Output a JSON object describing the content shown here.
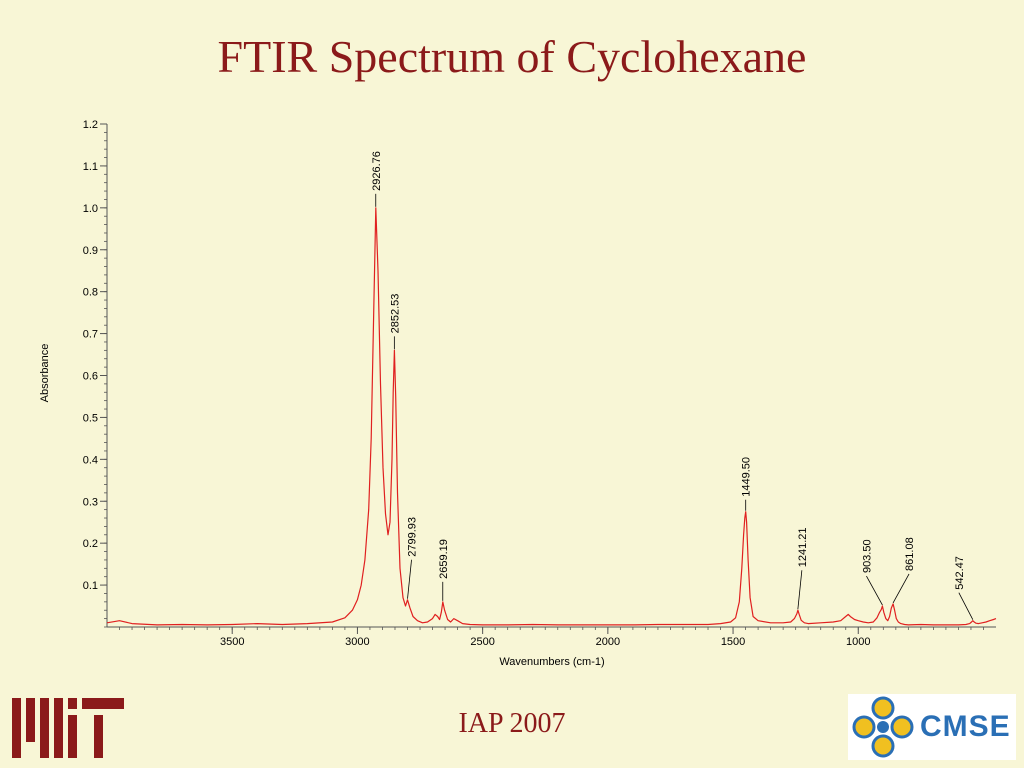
{
  "slide": {
    "title": "FTIR Spectrum of Cyclohexane",
    "footer": "IAP 2007",
    "logo_right_text": "CMSE",
    "logo_left": "MIT logo",
    "title_color": "#8b1a1a",
    "background_color": "#f8f6d6"
  },
  "chart_data": {
    "type": "line",
    "xlabel": "Wavenumbers (cm-1)",
    "ylabel": "Absorbance",
    "xlim": [
      4000,
      450
    ],
    "ylim": [
      0,
      1.2
    ],
    "x_reversed": true,
    "x_ticks": [
      3500,
      3000,
      2500,
      2000,
      1500,
      1000
    ],
    "y_ticks": [
      0.1,
      0.2,
      0.3,
      0.4,
      0.5,
      0.6,
      0.7,
      0.8,
      0.9,
      1.0,
      1.1,
      1.2
    ],
    "grid": false,
    "line_color": "#e02020",
    "peaks": [
      {
        "label": "2926.76",
        "x": 2926.76,
        "y": 1.0
      },
      {
        "label": "2852.53",
        "x": 2852.53,
        "y": 0.66
      },
      {
        "label": "2799.93",
        "x": 2799.93,
        "y": 0.065
      },
      {
        "label": "2659.19",
        "x": 2659.19,
        "y": 0.06
      },
      {
        "label": "1449.50",
        "x": 1449.5,
        "y": 0.275
      },
      {
        "label": "1241.21",
        "x": 1241.21,
        "y": 0.04
      },
      {
        "label": "903.50",
        "x": 903.5,
        "y": 0.05
      },
      {
        "label": "861.08",
        "x": 861.08,
        "y": 0.055
      },
      {
        "label": "542.47",
        "x": 542.47,
        "y": 0.015
      }
    ],
    "series": [
      {
        "x": [
          4000,
          3950,
          3900,
          3800,
          3700,
          3600,
          3500,
          3400,
          3300,
          3200,
          3100,
          3050,
          3020,
          3000,
          2985,
          2970,
          2955,
          2945,
          2935,
          2926.76,
          2918,
          2908,
          2898,
          2888,
          2878,
          2870,
          2862,
          2857,
          2852.53,
          2847,
          2840,
          2830,
          2818,
          2808,
          2799.93,
          2790,
          2778,
          2760,
          2740,
          2720,
          2700,
          2690,
          2680,
          2672,
          2665,
          2659.19,
          2652,
          2640,
          2628,
          2615,
          2600,
          2580,
          2550,
          2500,
          2400,
          2300,
          2200,
          2100,
          2000,
          1900,
          1800,
          1700,
          1600,
          1550,
          1510,
          1490,
          1475,
          1465,
          1458,
          1453,
          1449.5,
          1446,
          1440,
          1432,
          1420,
          1400,
          1350,
          1300,
          1270,
          1255,
          1245,
          1241.21,
          1236,
          1228,
          1215,
          1200,
          1150,
          1100,
          1070,
          1050,
          1040,
          1030,
          1015,
          1000,
          980,
          960,
          940,
          925,
          915,
          908,
          903.5,
          898,
          890,
          882,
          875,
          868,
          861.08,
          855,
          848,
          840,
          830,
          815,
          800,
          750,
          700,
          650,
          600,
          570,
          555,
          548,
          542.47,
          537,
          530,
          520,
          505,
          490,
          475,
          460,
          450
        ],
        "y": [
          0.01,
          0.015,
          0.008,
          0.005,
          0.006,
          0.005,
          0.006,
          0.008,
          0.006,
          0.008,
          0.012,
          0.022,
          0.04,
          0.065,
          0.1,
          0.16,
          0.28,
          0.45,
          0.75,
          1.0,
          0.85,
          0.58,
          0.38,
          0.27,
          0.22,
          0.25,
          0.4,
          0.56,
          0.66,
          0.55,
          0.32,
          0.14,
          0.07,
          0.05,
          0.065,
          0.045,
          0.025,
          0.015,
          0.01,
          0.012,
          0.02,
          0.03,
          0.025,
          0.018,
          0.035,
          0.06,
          0.04,
          0.018,
          0.012,
          0.02,
          0.015,
          0.008,
          0.006,
          0.005,
          0.005,
          0.006,
          0.005,
          0.005,
          0.005,
          0.005,
          0.006,
          0.006,
          0.006,
          0.008,
          0.012,
          0.022,
          0.06,
          0.14,
          0.22,
          0.26,
          0.275,
          0.25,
          0.16,
          0.07,
          0.025,
          0.015,
          0.01,
          0.01,
          0.012,
          0.02,
          0.032,
          0.04,
          0.03,
          0.016,
          0.01,
          0.008,
          0.01,
          0.012,
          0.015,
          0.025,
          0.03,
          0.024,
          0.018,
          0.015,
          0.012,
          0.01,
          0.012,
          0.022,
          0.035,
          0.042,
          0.05,
          0.035,
          0.02,
          0.015,
          0.025,
          0.045,
          0.055,
          0.04,
          0.02,
          0.012,
          0.008,
          0.006,
          0.005,
          0.006,
          0.005,
          0.005,
          0.005,
          0.006,
          0.008,
          0.012,
          0.015,
          0.012,
          0.009,
          0.008,
          0.01,
          0.012,
          0.015,
          0.018,
          0.02
        ]
      }
    ]
  }
}
